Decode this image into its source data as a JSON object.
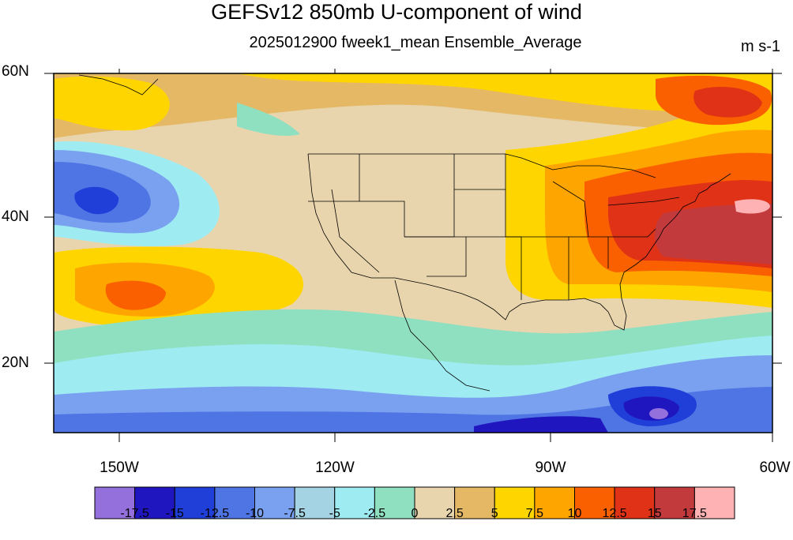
{
  "title": "GEFSv12 850mb U-component of wind",
  "subtitle": "2025012900 fweek1_mean Ensemble_Average",
  "units": "m s-1",
  "map": {
    "lon_range": [
      -160,
      -60
    ],
    "lat_range": [
      10,
      60
    ],
    "lat_labels": [
      "60N",
      "40N",
      "20N"
    ],
    "lon_labels": [
      "150W",
      "120W",
      "90W",
      "60W"
    ]
  },
  "colorbar": {
    "colors": [
      "#9370db",
      "#2016c0",
      "#1f3fd8",
      "#4f75e5",
      "#7aa1ef",
      "#a4d4e3",
      "#9eecf2",
      "#8fdfc1",
      "#e8d5ad",
      "#e5b865",
      "#ffd500",
      "#ffa500",
      "#fa6000",
      "#e03216",
      "#c23a3c",
      "#ffb2b4"
    ],
    "labels": [
      "-17.5",
      "-15",
      "-12.5",
      "-10",
      "-7.5",
      "-5",
      "-2.5",
      "0",
      "2.5",
      "5",
      "7.5",
      "10",
      "12.5",
      "15",
      "17.5"
    ]
  }
}
